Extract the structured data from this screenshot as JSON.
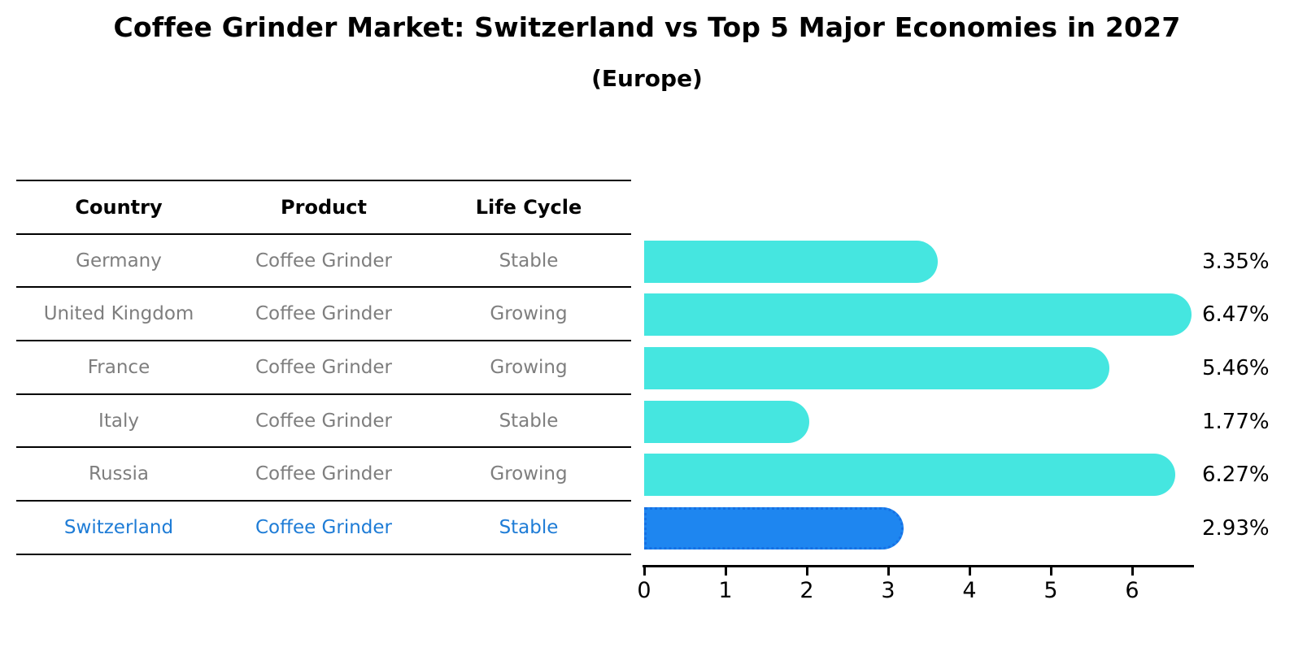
{
  "title": "Coffee Grinder Market: Switzerland vs Top 5 Major Economies in 2027",
  "subtitle": "(Europe)",
  "table": {
    "headers": [
      "Country",
      "Product",
      "Life Cycle"
    ],
    "rows": [
      {
        "country": "Germany",
        "product": "Coffee Grinder",
        "life_cycle": "Stable",
        "highlight": false
      },
      {
        "country": "United Kingdom",
        "product": "Coffee Grinder",
        "life_cycle": "Growing",
        "highlight": false
      },
      {
        "country": "France",
        "product": "Coffee Grinder",
        "life_cycle": "Growing",
        "highlight": false
      },
      {
        "country": "Italy",
        "product": "Coffee Grinder",
        "life_cycle": "Stable",
        "highlight": false
      },
      {
        "country": "Russia",
        "product": "Coffee Grinder",
        "life_cycle": "Growing",
        "highlight": false
      },
      {
        "country": "Switzerland",
        "product": "Coffee Grinder",
        "life_cycle": "Stable",
        "highlight": true
      }
    ]
  },
  "chart_data": {
    "type": "bar",
    "orientation": "horizontal",
    "title": "Coffee Grinder Market: Switzerland vs Top 5 Major Economies in 2027",
    "subtitle": "(Europe)",
    "categories": [
      "Germany",
      "United Kingdom",
      "France",
      "Italy",
      "Russia",
      "Switzerland"
    ],
    "values": [
      3.35,
      6.47,
      5.46,
      1.77,
      6.27,
      2.93
    ],
    "value_labels": [
      "3.35%",
      "6.47%",
      "5.46%",
      "1.77%",
      "6.27%",
      "2.93%"
    ],
    "xlabel": "",
    "ylabel": "",
    "xlim": [
      0,
      6.76
    ],
    "xticks": [
      0,
      1,
      2,
      3,
      4,
      5,
      6
    ],
    "grid": false,
    "legend": false,
    "highlight_index": 5,
    "bar_color": "#45e6e0",
    "highlight_color": "#1e86f0",
    "highlight_edge_color": "#1670e4",
    "highlight_text_color": "#1e7cd6",
    "table_text_color": "#7e7e7e",
    "text_color": "#000000"
  }
}
